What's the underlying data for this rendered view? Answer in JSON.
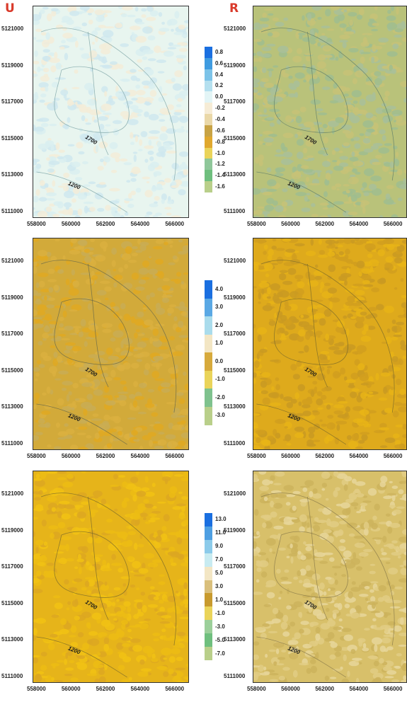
{
  "titles": {
    "left": "U",
    "right": "R"
  },
  "y_ticks": [
    "5121000",
    "5119000",
    "5117000",
    "5115000",
    "5113000",
    "5111000"
  ],
  "x_ticks": [
    "558000",
    "560000",
    "562000",
    "564000",
    "566000"
  ],
  "contour_labels": [
    "1700",
    "1200"
  ],
  "panels": [
    {
      "id": "row1-left",
      "base": "#e8f5ef",
      "speck": [
        "#d9eef0",
        "#f3ecd8",
        "#cfe8ee"
      ],
      "contour": "#7fa6a8"
    },
    {
      "id": "row1-right",
      "base": "#b9c27a",
      "speck": [
        "#9fbd8f",
        "#c7c277",
        "#a8c09a"
      ],
      "contour": "#5f7e6a"
    },
    {
      "id": "row2-left",
      "base": "#d2aa3a",
      "speck": [
        "#e1a922",
        "#c9ad55",
        "#dab040"
      ],
      "contour": "#6a6a4a"
    },
    {
      "id": "row2-right",
      "base": "#deaa1c",
      "speck": [
        "#d19f1e",
        "#e8b416",
        "#c99a22"
      ],
      "contour": "#7a6a2a"
    },
    {
      "id": "row3-left",
      "base": "#e6b41a",
      "speck": [
        "#ecbc14",
        "#dca722",
        "#f1c214"
      ],
      "contour": "#7a6a2a"
    },
    {
      "id": "row3-right",
      "base": "#d8c06a",
      "speck": [
        "#e2cd84",
        "#cdb35c",
        "#e8d69a"
      ],
      "contour": "#8a7a4a"
    }
  ],
  "legends": [
    {
      "labels": [
        "0.8",
        "0.6",
        "0.4",
        "0.2",
        "0.0",
        "-0.2",
        "-0.4",
        "-0.6",
        "-0.8",
        "-1.0",
        "-1.2",
        "-1.4",
        "-1.6"
      ],
      "colors": [
        "#1a6fe0",
        "#3f9be0",
        "#7cc3e8",
        "#b5e0ef",
        "#e3f5f6",
        "#f6ecd6",
        "#ead8a8",
        "#c8a345",
        "#e0a82e",
        "#ead45a",
        "#8fc79a",
        "#6fbf7e",
        "#b9cf8a"
      ]
    },
    {
      "labels": [
        "4.0",
        "3.0",
        "2.0",
        "1.0",
        "0.0",
        "-1.0",
        "-2.0",
        "-3.0"
      ],
      "colors": [
        "#1a6fe0",
        "#5aa8e4",
        "#aadcec",
        "#f3e6c4",
        "#d7aa3c",
        "#ead45a",
        "#7fc28e",
        "#b9cf8a"
      ]
    },
    {
      "labels": [
        "13.0",
        "11.0",
        "9.0",
        "7.0",
        "5.0",
        "3.0",
        "1.0",
        "-1.0",
        "-3.0",
        "-5.0",
        "-7.0"
      ],
      "colors": [
        "#1a6fe0",
        "#4e9fe2",
        "#8ccbea",
        "#c8ebf1",
        "#f3e6c4",
        "#d9bf7c",
        "#c89a2e",
        "#ead45a",
        "#9ccf9a",
        "#6fbf7e",
        "#b9cf8a"
      ]
    }
  ]
}
